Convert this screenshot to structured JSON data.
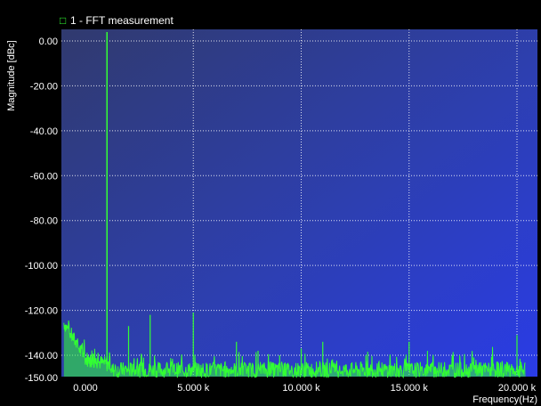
{
  "chart_data": {
    "type": "line",
    "legend": {
      "marker": "□",
      "text": "1 - FFT  measurement",
      "placement": "top-left"
    },
    "ylabel": "Magnitude [dBc]",
    "xlabel": "Frequency(Hz)",
    "xlim": [
      0,
      20000
    ],
    "ylim": [
      -150,
      0
    ],
    "yticks": [
      {
        "value": 0,
        "label": "0.00"
      },
      {
        "value": -20,
        "label": "-20.00"
      },
      {
        "value": -40,
        "label": "-40.00"
      },
      {
        "value": -60,
        "label": "-60.00"
      },
      {
        "value": -80,
        "label": "-80.00"
      },
      {
        "value": -100,
        "label": "-100.00"
      },
      {
        "value": -120,
        "label": "-120.00"
      },
      {
        "value": -140,
        "label": "-140.00"
      },
      {
        "value": -150,
        "label": "-150.00"
      }
    ],
    "xticks": [
      {
        "value": 0,
        "label": "0.000"
      },
      {
        "value": 5000,
        "label": "5.000 k"
      },
      {
        "value": 10000,
        "label": "10.000 k"
      },
      {
        "value": 15000,
        "label": "15.000 k"
      },
      {
        "value": 20000,
        "label": "20.000 k"
      }
    ],
    "grid": true,
    "series_color": "#33ff33",
    "fundamental": {
      "x": 1000,
      "y": 0
    },
    "noise_floor": {
      "low_start": -125,
      "floor": -148
    },
    "spurs": [
      {
        "x": 2000,
        "y": -127
      },
      {
        "x": 3000,
        "y": -122
      },
      {
        "x": 5000,
        "y": -121
      },
      {
        "x": 7000,
        "y": -134
      },
      {
        "x": 8000,
        "y": -138
      },
      {
        "x": 9000,
        "y": -140
      },
      {
        "x": 10000,
        "y": -137
      },
      {
        "x": 11000,
        "y": -134
      },
      {
        "x": 13000,
        "y": -140
      },
      {
        "x": 15000,
        "y": -134
      },
      {
        "x": 18000,
        "y": -141
      },
      {
        "x": 20000,
        "y": -131
      }
    ]
  }
}
